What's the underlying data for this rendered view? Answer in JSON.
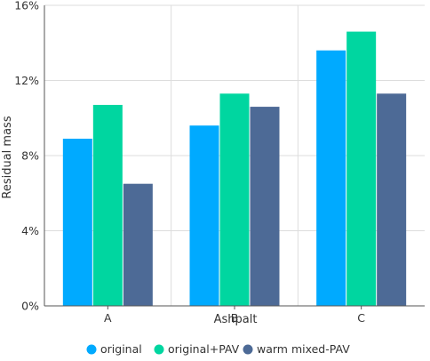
{
  "chart_data": {
    "type": "bar",
    "title": "",
    "xlabel": "Ashpalt",
    "ylabel": "Residual mass",
    "categories": [
      "A",
      "B",
      "C"
    ],
    "series": [
      {
        "name": "original",
        "values": [
          8.9,
          9.6,
          13.6
        ],
        "color": "#00aaff"
      },
      {
        "name": "original+PAV",
        "values": [
          10.7,
          11.3,
          14.6
        ],
        "color": "#00d6a0"
      },
      {
        "name": "warm mixed-PAV",
        "values": [
          6.5,
          10.6,
          11.3
        ],
        "color": "#4d6a96"
      }
    ],
    "ylim": [
      0,
      16
    ],
    "yticks": [
      0,
      4,
      8,
      12,
      16
    ],
    "ytick_labels": [
      "0%",
      "4%",
      "8%",
      "12%",
      "16%"
    ],
    "grid": true,
    "legend_position": "bottom"
  }
}
